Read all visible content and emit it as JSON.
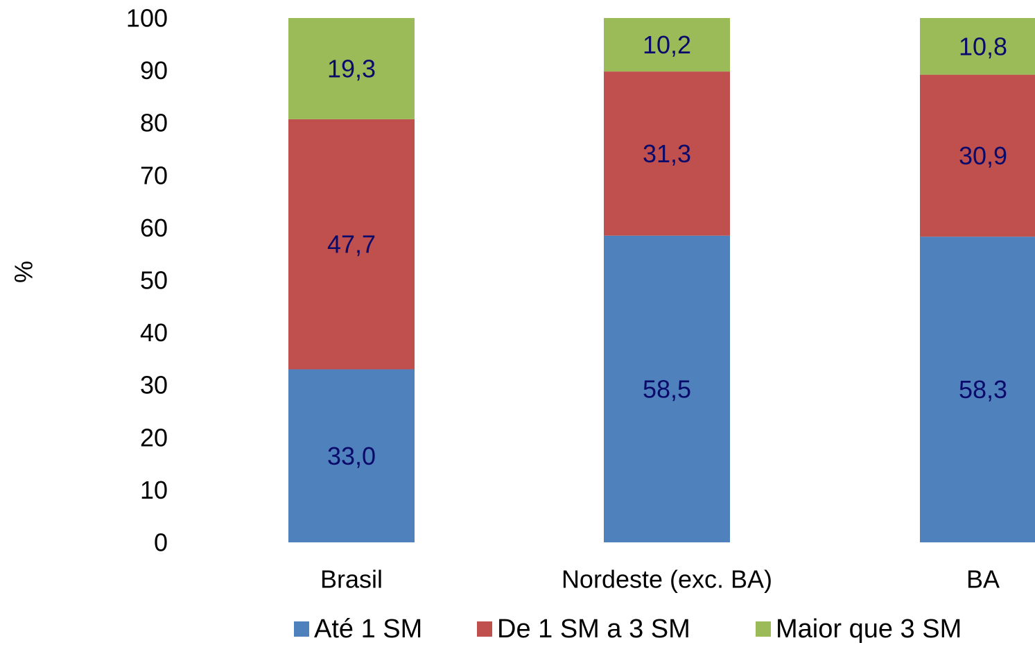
{
  "chart_data": {
    "type": "bar",
    "stacked": true,
    "categories": [
      "Brasil",
      "Nordeste (exc. BA)",
      "BA"
    ],
    "series": [
      {
        "name": "Até 1 SM",
        "values": [
          33.0,
          58.5,
          58.3
        ],
        "labels": [
          "33,0",
          "58,5",
          "58,3"
        ],
        "color": "#4f81bd"
      },
      {
        "name": "De 1 SM a 3 SM",
        "values": [
          47.7,
          31.3,
          30.9
        ],
        "labels": [
          "47,7",
          "31,3",
          "30,9"
        ],
        "color": "#c0504d"
      },
      {
        "name": "Maior que 3 SM",
        "values": [
          19.3,
          10.2,
          10.8
        ],
        "labels": [
          "19,3",
          "10,2",
          "10,8"
        ],
        "color": "#9bbb59"
      }
    ],
    "ylabel": "%",
    "ylim": [
      0,
      100
    ],
    "yticks": [
      0,
      10,
      20,
      30,
      40,
      50,
      60,
      70,
      80,
      90,
      100
    ],
    "grid": false,
    "legend_position": "bottom",
    "data_label_color": "#0a0a6b"
  }
}
